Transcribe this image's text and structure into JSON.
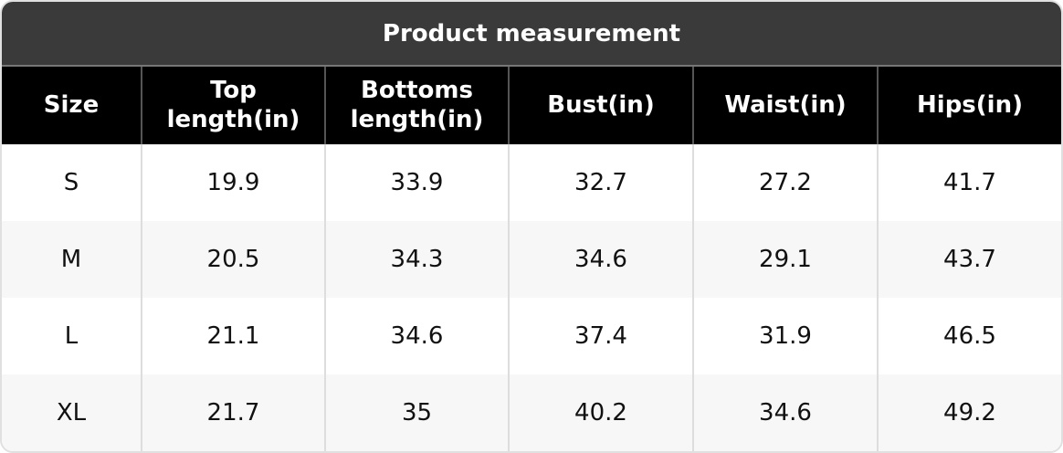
{
  "header": {
    "title": "Product measurement"
  },
  "table": {
    "columns": [
      "Size",
      "Top length(in)",
      "Bottoms length(in)",
      "Bust(in)",
      "Waist(in)",
      "Hips(in)"
    ],
    "rows": [
      [
        "S",
        19.9,
        33.9,
        32.7,
        27.2,
        41.7
      ],
      [
        "M",
        20.5,
        34.3,
        34.6,
        29.1,
        43.7
      ],
      [
        "L",
        21.1,
        34.6,
        37.4,
        31.9,
        46.5
      ],
      [
        "XL",
        21.7,
        35,
        40.2,
        34.6,
        49.2
      ]
    ]
  }
}
